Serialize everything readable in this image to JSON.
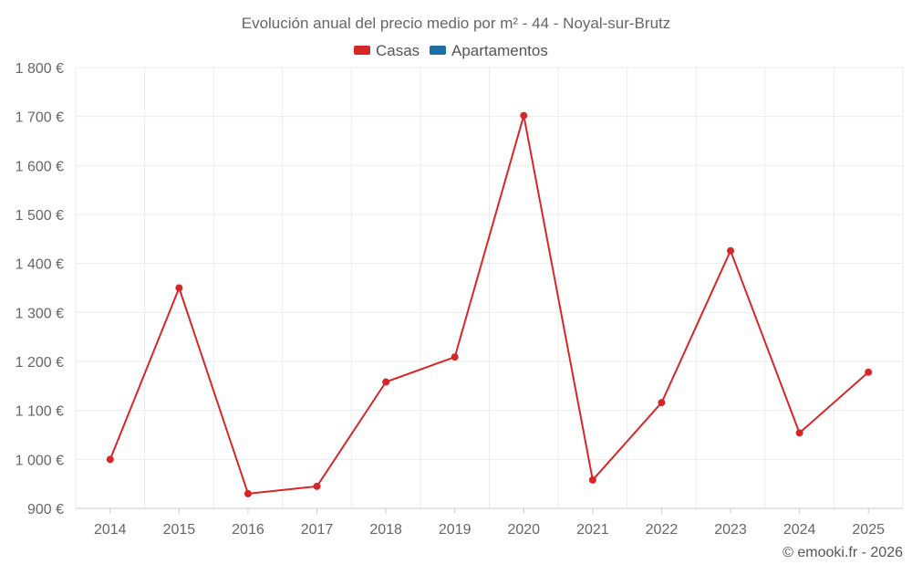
{
  "chart_data": {
    "type": "line",
    "title": "Evolución anual del precio medio por m² - 44 - Noyal-sur-Brutz",
    "legend": [
      {
        "name": "Casas",
        "color": "#d62728"
      },
      {
        "name": "Apartamentos",
        "color": "#1f6fa6"
      }
    ],
    "categories": [
      "2014",
      "2015",
      "2016",
      "2017",
      "2018",
      "2019",
      "2020",
      "2021",
      "2022",
      "2023",
      "2024",
      "2025"
    ],
    "series": [
      {
        "name": "Casas",
        "color": "#d62728",
        "values": [
          1000,
          1350,
          930,
          945,
          1158,
          1209,
          1702,
          958,
          1116,
          1426,
          1054,
          1178
        ]
      }
    ],
    "y_ticks": [
      900,
      1000,
      1100,
      1200,
      1300,
      1400,
      1500,
      1600,
      1700,
      1800
    ],
    "y_tick_labels": [
      "900 €",
      "1 000 €",
      "1 100 €",
      "1 200 €",
      "1 300 €",
      "1 400 €",
      "1 500 €",
      "1 600 €",
      "1 700 €",
      "1 800 €"
    ],
    "ylim": [
      900,
      1800
    ],
    "xlabel": "",
    "ylabel": "",
    "grid": true,
    "legend_position": "top-center"
  },
  "credit": "© emooki.fr - 2026"
}
